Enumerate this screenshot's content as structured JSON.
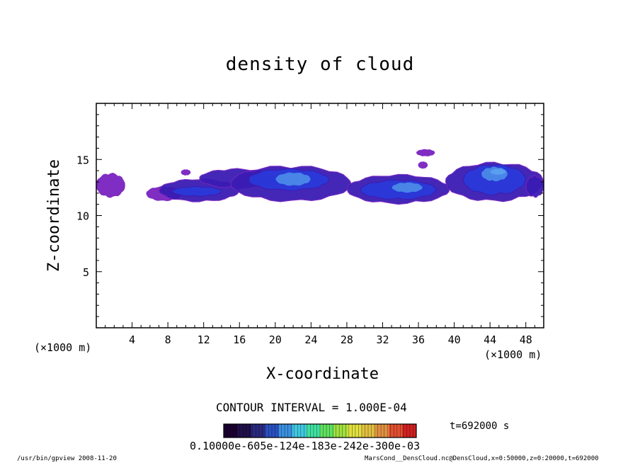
{
  "chart_data": {
    "type": "heatmap",
    "title": "density of cloud",
    "xlabel": "X-coordinate",
    "ylabel": "Z-coordinate",
    "x_unit_label": "(×1000 m)",
    "xlim": [
      0,
      50
    ],
    "ylim": [
      0,
      20
    ],
    "x_ticks": [
      4,
      8,
      12,
      16,
      20,
      24,
      28,
      32,
      36,
      40,
      44,
      48
    ],
    "y_ticks": [
      5,
      10,
      15
    ],
    "contour_interval": "CONTOUR INTERVAL = 1.000E-04",
    "time": "t=692000 s",
    "colorbar_labels_text": "0.10000e-605e-124e-183e-242e-300e-03",
    "colorbar_colors": [
      "#1a0030",
      "#20104a",
      "#2a2a80",
      "#2a50c0",
      "#3a90e0",
      "#40c8e0",
      "#40e0a0",
      "#60e060",
      "#a0e040",
      "#e0e040",
      "#e0c040",
      "#e09040",
      "#e05030",
      "#d02020"
    ],
    "cloud_colors": {
      "outer": "#7a22c0",
      "middle": "#3a1cb4",
      "inner": "#2a38d8",
      "core": "#4a8ae8"
    },
    "cloud_regions": [
      {
        "x": [
          0.0,
          3.2
        ],
        "z": [
          11.6,
          13.8
        ],
        "level": 1
      },
      {
        "x": [
          5.6,
          9.5
        ],
        "z": [
          11.3,
          12.6
        ],
        "level": 1
      },
      {
        "x": [
          7.0,
          16.0
        ],
        "z": [
          11.2,
          13.3
        ],
        "level": 2
      },
      {
        "x": [
          8.5,
          14.0
        ],
        "z": [
          11.7,
          12.6
        ],
        "level": 3
      },
      {
        "x": [
          9.5,
          10.5
        ],
        "z": [
          13.6,
          14.1
        ],
        "level": 1
      },
      {
        "x": [
          11.5,
          20.0
        ],
        "z": [
          12.4,
          14.2
        ],
        "level": 2
      },
      {
        "x": [
          15.0,
          28.5
        ],
        "z": [
          11.2,
          14.5
        ],
        "level": 2
      },
      {
        "x": [
          17.0,
          26.0
        ],
        "z": [
          12.2,
          14.2
        ],
        "level": 3
      },
      {
        "x": [
          20.0,
          24.0
        ],
        "z": [
          12.6,
          13.9
        ],
        "level": 4
      },
      {
        "x": [
          28.0,
          39.5
        ],
        "z": [
          11.0,
          13.7
        ],
        "level": 2
      },
      {
        "x": [
          29.5,
          38.0
        ],
        "z": [
          11.4,
          13.2
        ],
        "level": 3
      },
      {
        "x": [
          33.0,
          36.5
        ],
        "z": [
          12.0,
          13.0
        ],
        "level": 4
      },
      {
        "x": [
          35.8,
          37.8
        ],
        "z": [
          15.3,
          15.9
        ],
        "level": 1
      },
      {
        "x": [
          36.0,
          37.0
        ],
        "z": [
          14.2,
          14.8
        ],
        "level": 1
      },
      {
        "x": [
          39.0,
          50.0
        ],
        "z": [
          11.2,
          14.8
        ],
        "level": 2
      },
      {
        "x": [
          41.0,
          48.0
        ],
        "z": [
          11.8,
          14.6
        ],
        "level": 3
      },
      {
        "x": [
          43.0,
          46.0
        ],
        "z": [
          13.0,
          14.4
        ],
        "level": 4
      },
      {
        "x": [
          44.0,
          45.8
        ],
        "z": [
          13.6,
          14.2
        ],
        "level": 5
      },
      {
        "x": [
          48.0,
          50.0
        ],
        "z": [
          11.6,
          13.6
        ],
        "level": 2
      }
    ]
  },
  "footer": {
    "left": "/usr/bin/gpview   2008-11-20",
    "right": "MarsCond__DensCloud.nc@DensCloud,x=0:50000,z=0:20000,t=692000"
  }
}
